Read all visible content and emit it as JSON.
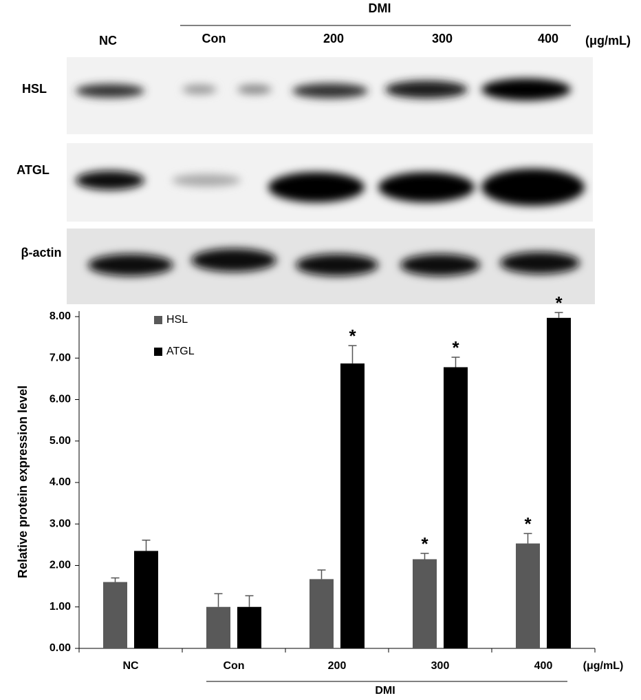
{
  "blot": {
    "group": "DMI",
    "lanes": [
      "NC",
      "Con",
      "200",
      "300",
      "400"
    ],
    "unit": "(μg/mL)",
    "rows": [
      "HSL",
      "ATGL",
      "β-actin"
    ]
  },
  "chart_data": {
    "type": "bar",
    "y_label": "Relative protein expression level",
    "categories": [
      "NC",
      "Con",
      "200",
      "300",
      "400"
    ],
    "unit": "(μg/mL)",
    "group": "DMI",
    "series": [
      {
        "name": "HSL",
        "color": "#595959",
        "values": [
          1.6,
          1.0,
          1.67,
          2.15,
          2.53
        ],
        "errors": [
          0.1,
          0.32,
          0.22,
          0.14,
          0.24
        ],
        "markers": [
          null,
          null,
          null,
          "*",
          "*"
        ]
      },
      {
        "name": "ATGL",
        "color": "#000000",
        "values": [
          2.35,
          1.0,
          6.87,
          6.78,
          7.97
        ],
        "errors": [
          0.26,
          0.27,
          0.43,
          0.24,
          0.13
        ],
        "markers": [
          null,
          null,
          "*",
          "*",
          "*"
        ]
      }
    ],
    "ylim": [
      0,
      8
    ],
    "yticks": [
      {
        "value": 0,
        "label": "0.00"
      },
      {
        "value": 1,
        "label": "1.00"
      },
      {
        "value": 2,
        "label": "2.00"
      },
      {
        "value": 3,
        "label": "3.00"
      },
      {
        "value": 4,
        "label": "4.00"
      },
      {
        "value": 5,
        "label": "5.00"
      },
      {
        "value": 6,
        "label": "6.00"
      },
      {
        "value": 7,
        "label": "7.00"
      },
      {
        "value": 8,
        "label": "8.00"
      }
    ],
    "legend": "upper left"
  }
}
